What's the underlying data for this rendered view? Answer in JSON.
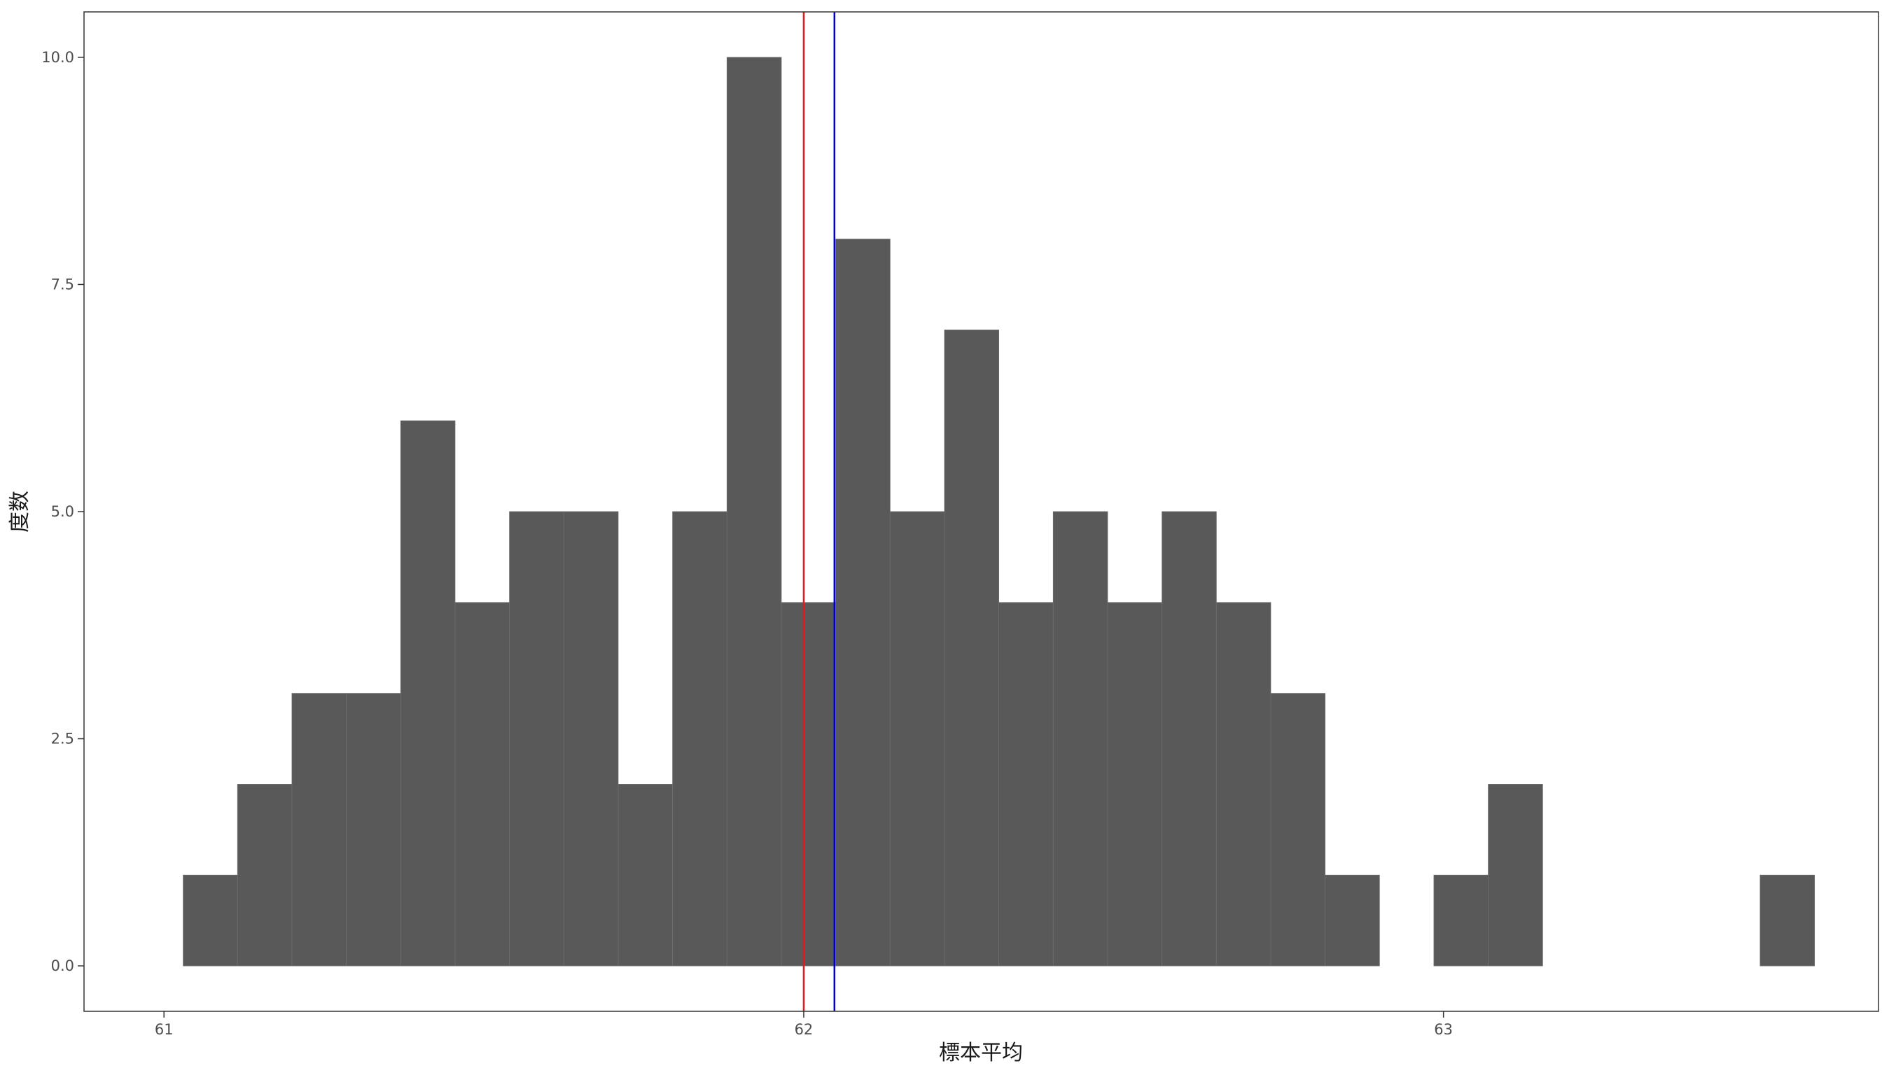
{
  "chart_data": {
    "type": "bar",
    "subtype": "histogram",
    "xlabel": "標本平均",
    "ylabel": "度数",
    "xlim": [
      60.875,
      63.68
    ],
    "ylim": [
      -0.5,
      10.5
    ],
    "x_ticks": [
      61,
      62,
      63
    ],
    "x_tick_labels": [
      "61",
      "62",
      "63"
    ],
    "y_ticks": [
      0,
      2.5,
      5,
      7.5,
      10
    ],
    "y_tick_labels": [
      "0.0",
      "2.5",
      "5.0",
      "7.5",
      "10.0"
    ],
    "bin_width": 0.085,
    "bins": [
      {
        "x0": 61.03,
        "x1": 61.115,
        "count": 1
      },
      {
        "x0": 61.115,
        "x1": 61.2,
        "count": 2
      },
      {
        "x0": 61.2,
        "x1": 61.285,
        "count": 3
      },
      {
        "x0": 61.285,
        "x1": 61.37,
        "count": 3
      },
      {
        "x0": 61.37,
        "x1": 61.455,
        "count": 6
      },
      {
        "x0": 61.455,
        "x1": 61.54,
        "count": 4
      },
      {
        "x0": 61.54,
        "x1": 61.625,
        "count": 5
      },
      {
        "x0": 61.625,
        "x1": 61.71,
        "count": 5
      },
      {
        "x0": 61.71,
        "x1": 61.795,
        "count": 2
      },
      {
        "x0": 61.795,
        "x1": 61.88,
        "count": 5
      },
      {
        "x0": 61.88,
        "x1": 61.965,
        "count": 10
      },
      {
        "x0": 61.965,
        "x1": 62.05,
        "count": 4
      },
      {
        "x0": 62.05,
        "x1": 62.135,
        "count": 8
      },
      {
        "x0": 62.135,
        "x1": 62.22,
        "count": 5
      },
      {
        "x0": 62.22,
        "x1": 62.305,
        "count": 7
      },
      {
        "x0": 62.305,
        "x1": 62.39,
        "count": 4
      },
      {
        "x0": 62.39,
        "x1": 62.475,
        "count": 5
      },
      {
        "x0": 62.475,
        "x1": 62.56,
        "count": 4
      },
      {
        "x0": 62.56,
        "x1": 62.645,
        "count": 5
      },
      {
        "x0": 62.645,
        "x1": 62.73,
        "count": 4
      },
      {
        "x0": 62.73,
        "x1": 62.815,
        "count": 3
      },
      {
        "x0": 62.815,
        "x1": 62.9,
        "count": 1
      },
      {
        "x0": 62.9,
        "x1": 62.985,
        "count": 0
      },
      {
        "x0": 62.985,
        "x1": 63.07,
        "count": 1
      },
      {
        "x0": 63.07,
        "x1": 63.155,
        "count": 2
      },
      {
        "x0": 63.155,
        "x1": 63.24,
        "count": 0
      },
      {
        "x0": 63.24,
        "x1": 63.325,
        "count": 0
      },
      {
        "x0": 63.325,
        "x1": 63.41,
        "count": 0
      },
      {
        "x0": 63.41,
        "x1": 63.495,
        "count": 0
      },
      {
        "x0": 63.495,
        "x1": 63.58,
        "count": 1
      }
    ],
    "vlines": [
      {
        "x": 62.0,
        "color": "#e31a1c"
      },
      {
        "x": 62.048,
        "color": "#0000cc"
      }
    ],
    "bar_color": "#595959",
    "grid": false
  }
}
